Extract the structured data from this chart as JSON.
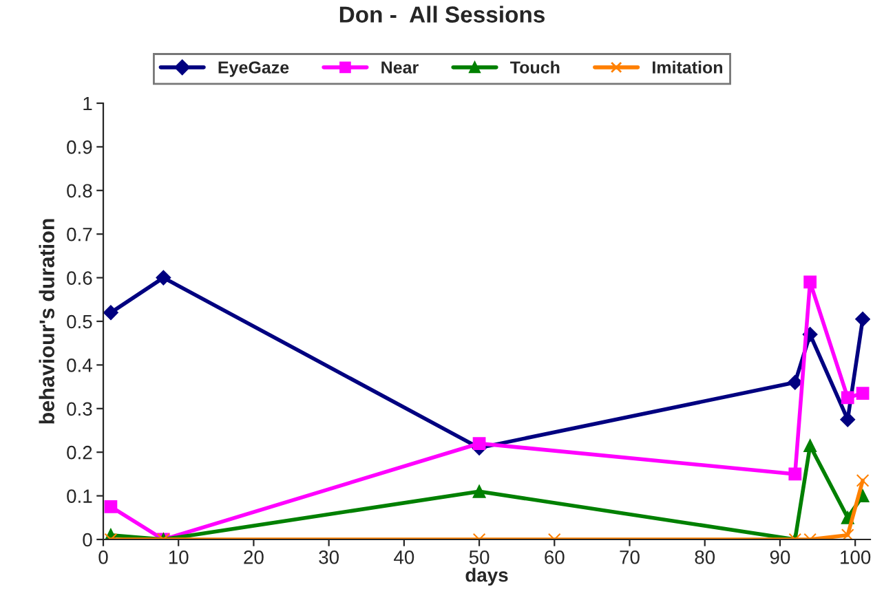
{
  "chart_data": {
    "type": "line",
    "title": "Don -  All Sessions",
    "xlabel": "days",
    "ylabel": "behaviour's duration",
    "series": [
      {
        "name": "EyeGaze",
        "color": "#000080",
        "marker": "diamond",
        "x": [
          1,
          8,
          50,
          92,
          94,
          99,
          101
        ],
        "values": [
          0.52,
          0.6,
          0.21,
          0.36,
          0.47,
          0.275,
          0.505
        ]
      },
      {
        "name": "Near",
        "color": "#ff00ff",
        "marker": "square",
        "x": [
          1,
          8,
          50,
          92,
          94,
          99,
          101
        ],
        "values": [
          0.075,
          0,
          0.22,
          0.15,
          0.59,
          0.325,
          0.335
        ]
      },
      {
        "name": "Touch",
        "color": "#008000",
        "marker": "triangle",
        "x": [
          1,
          8,
          50,
          92,
          94,
          99,
          101
        ],
        "values": [
          0.01,
          0,
          0.11,
          0,
          0.215,
          0.05,
          0.1
        ]
      },
      {
        "name": "Imitation",
        "color": "#ff8000",
        "marker": "cross",
        "x": [
          1,
          8,
          50,
          60,
          92,
          94,
          99,
          101
        ],
        "values": [
          0,
          0,
          0,
          0,
          0,
          0,
          0.01,
          0.135
        ]
      }
    ],
    "xlim": [
      0,
      102
    ],
    "xticks": [
      0,
      10,
      20,
      30,
      40,
      50,
      60,
      70,
      80,
      90,
      100
    ],
    "ylim": [
      0,
      1
    ],
    "yticks": [
      0,
      0.1,
      0.2,
      0.3,
      0.4,
      0.5,
      0.6,
      0.7,
      0.8,
      0.9,
      1
    ],
    "grid": false,
    "legend": "top",
    "line_style": "solid"
  }
}
